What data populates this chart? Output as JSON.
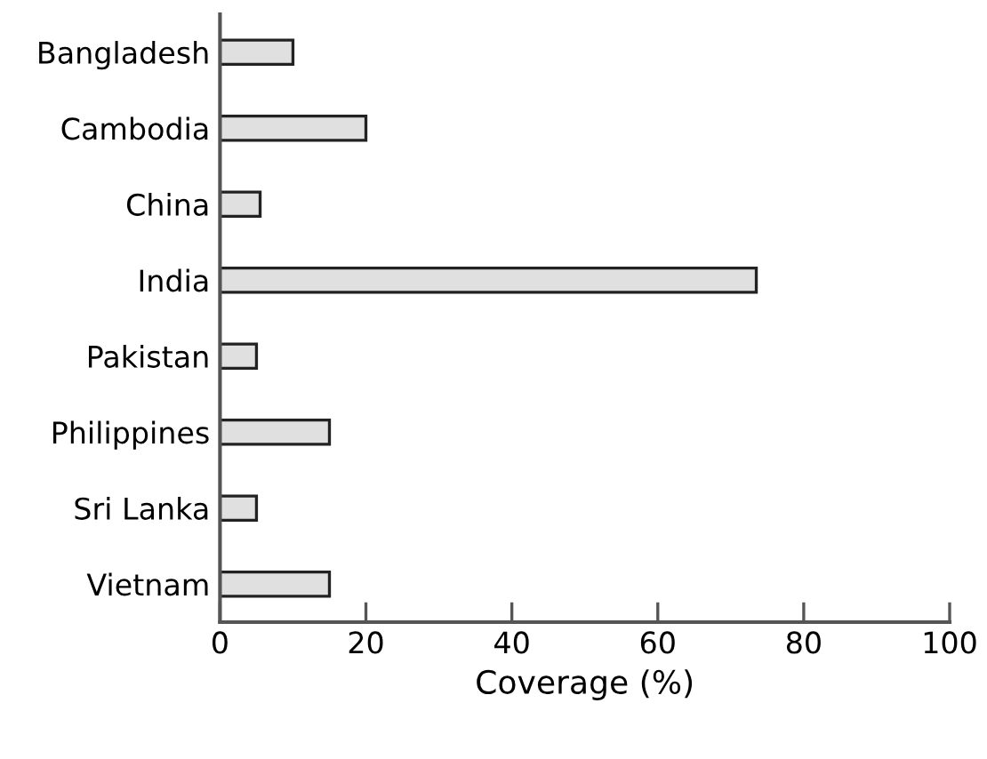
{
  "chart_data": {
    "type": "bar",
    "orientation": "horizontal",
    "xlabel": "Coverage (%)",
    "categories": [
      "Bangladesh",
      "Cambodia",
      "China",
      "India",
      "Pakistan",
      "Philippines",
      "Sri Lanka",
      "Vietnam"
    ],
    "values": [
      10,
      20,
      5.5,
      73.5,
      5,
      15,
      5,
      15
    ],
    "color": "#e0e0e0",
    "xlim": [
      0,
      100
    ],
    "xticks": [
      0,
      20,
      40,
      60,
      80,
      100
    ],
    "grid": false,
    "legend": false
  }
}
